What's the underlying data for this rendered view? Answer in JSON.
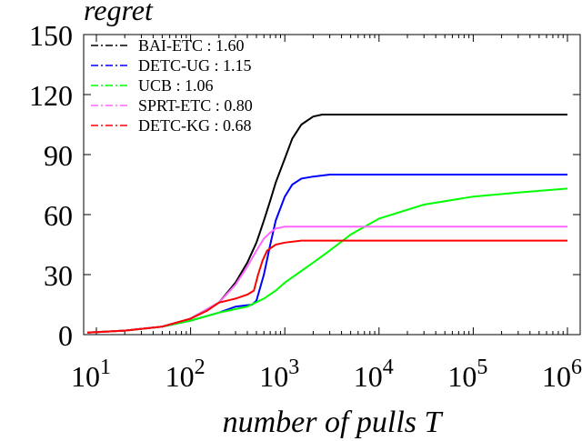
{
  "chart_data": {
    "type": "line",
    "title": "regret",
    "xlabel": "number of pulls T",
    "ylabel": "",
    "xscale": "log",
    "xlim": [
      10,
      1000000
    ],
    "ylim": [
      0,
      150
    ],
    "xticks": [
      {
        "value": 10,
        "base": "10",
        "exp": "1"
      },
      {
        "value": 100,
        "base": "10",
        "exp": "2"
      },
      {
        "value": 1000,
        "base": "10",
        "exp": "3"
      },
      {
        "value": 10000,
        "base": "10",
        "exp": "4"
      },
      {
        "value": 100000,
        "base": "10",
        "exp": "5"
      },
      {
        "value": 1000000,
        "base": "10",
        "exp": "6"
      }
    ],
    "yticks": [
      0,
      30,
      60,
      90,
      120,
      150
    ],
    "grid": false,
    "legend_position": "top-left",
    "line_style": "dash-dot",
    "series": [
      {
        "name": "BAI-ETC : 1.60",
        "color": "#000000",
        "points": [
          [
            8,
            1
          ],
          [
            20,
            2
          ],
          [
            50,
            4
          ],
          [
            100,
            8
          ],
          [
            200,
            16
          ],
          [
            300,
            26
          ],
          [
            400,
            36
          ],
          [
            500,
            46
          ],
          [
            600,
            57
          ],
          [
            700,
            67
          ],
          [
            800,
            76
          ],
          [
            1000,
            88
          ],
          [
            1200,
            98
          ],
          [
            1500,
            105
          ],
          [
            2000,
            109
          ],
          [
            2500,
            110
          ],
          [
            3000,
            110
          ],
          [
            1000000,
            110
          ]
        ]
      },
      {
        "name": "DETC-UG : 1.15",
        "color": "#0000ff",
        "points": [
          [
            8,
            1
          ],
          [
            20,
            2
          ],
          [
            50,
            4
          ],
          [
            100,
            7
          ],
          [
            200,
            11
          ],
          [
            300,
            14
          ],
          [
            450,
            15
          ],
          [
            500,
            17
          ],
          [
            600,
            30
          ],
          [
            700,
            45
          ],
          [
            800,
            57
          ],
          [
            1000,
            69
          ],
          [
            1200,
            75
          ],
          [
            1500,
            78
          ],
          [
            2000,
            79
          ],
          [
            3000,
            80
          ],
          [
            1000000,
            80
          ]
        ]
      },
      {
        "name": "UCB : 1.06",
        "color": "#00ff00",
        "points": [
          [
            8,
            1
          ],
          [
            20,
            2
          ],
          [
            50,
            4
          ],
          [
            100,
            7
          ],
          [
            200,
            11
          ],
          [
            400,
            14
          ],
          [
            600,
            18
          ],
          [
            800,
            22
          ],
          [
            1000,
            26
          ],
          [
            2000,
            36
          ],
          [
            3000,
            42
          ],
          [
            5000,
            50
          ],
          [
            10000,
            58
          ],
          [
            30000,
            65
          ],
          [
            100000,
            69
          ],
          [
            300000,
            71
          ],
          [
            1000000,
            73
          ]
        ]
      },
      {
        "name": "SPRT-ETC : 0.80",
        "color": "#ff66ff",
        "points": [
          [
            8,
            1
          ],
          [
            20,
            2
          ],
          [
            50,
            4
          ],
          [
            100,
            8
          ],
          [
            200,
            16
          ],
          [
            300,
            25
          ],
          [
            400,
            34
          ],
          [
            500,
            42
          ],
          [
            600,
            48
          ],
          [
            700,
            51
          ],
          [
            800,
            53
          ],
          [
            1000,
            54
          ],
          [
            1500,
            54
          ],
          [
            1000000,
            54
          ]
        ]
      },
      {
        "name": "DETC-KG : 0.68",
        "color": "#ff0000",
        "points": [
          [
            8,
            1
          ],
          [
            20,
            2
          ],
          [
            50,
            4
          ],
          [
            100,
            8
          ],
          [
            150,
            12
          ],
          [
            200,
            16
          ],
          [
            300,
            18
          ],
          [
            400,
            20
          ],
          [
            470,
            22
          ],
          [
            520,
            30
          ],
          [
            580,
            37
          ],
          [
            650,
            42
          ],
          [
            800,
            45
          ],
          [
            1000,
            46
          ],
          [
            1500,
            47
          ],
          [
            1000000,
            47
          ]
        ]
      }
    ]
  }
}
